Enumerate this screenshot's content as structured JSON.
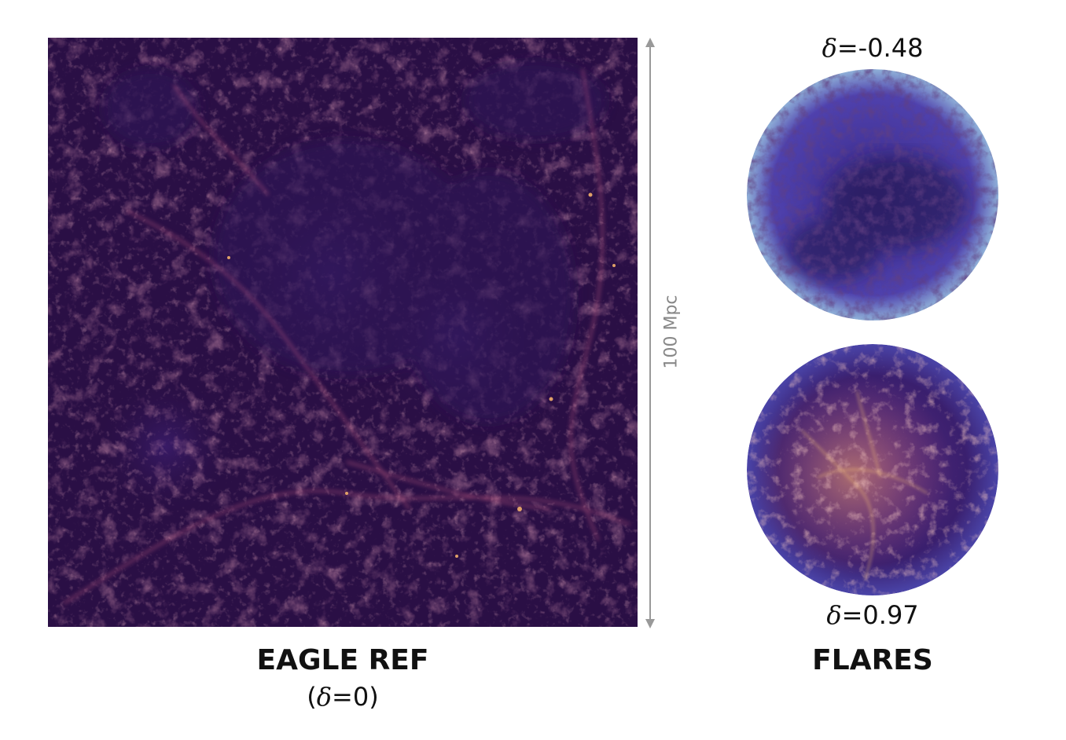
{
  "eagle_panel": {
    "title": "EAGLE REF",
    "subtitle_prefix": "(",
    "subtitle_symbol": "δ",
    "subtitle_value": "=0)"
  },
  "scale": {
    "label": "100 Mpc",
    "color": "#888888"
  },
  "flares_panel": {
    "title": "FLARES",
    "low_region": {
      "symbol": "δ",
      "value": "=-0.48"
    },
    "high_region": {
      "symbol": "δ",
      "value": "=0.97"
    }
  },
  "colors": {
    "eagle_background": "#2a0f45",
    "filament": "#c2567a",
    "filament_bright": "#f3b06a",
    "flares_low_background": "#4b3aa0",
    "flares_high_background": "#3a1f6e"
  }
}
